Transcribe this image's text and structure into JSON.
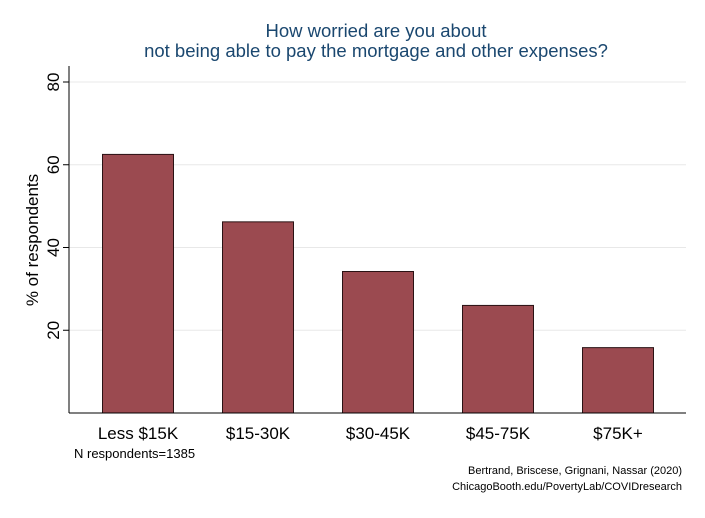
{
  "chart_data": {
    "type": "bar",
    "title_lines": [
      "How worried are you about",
      "not being able to pay the mortgage and other expenses?"
    ],
    "categories": [
      "Less $15K",
      "$15-30K",
      "$30-45K",
      "$45-75K",
      "$75K+"
    ],
    "values": [
      62.5,
      46.2,
      34.2,
      26.0,
      15.8
    ],
    "ylabel": "% of respondents",
    "xlabel": "",
    "ylim": [
      0,
      80
    ],
    "yticks": [
      20,
      40,
      60,
      80
    ],
    "grid": true,
    "bar_color": "#9b4a50",
    "note": "N respondents=1385",
    "credits": [
      "Bertrand, Briscese, Grignani, Nassar (2020)",
      "ChicagoBooth.edu/PovertyLab/COVIDresearch"
    ]
  }
}
